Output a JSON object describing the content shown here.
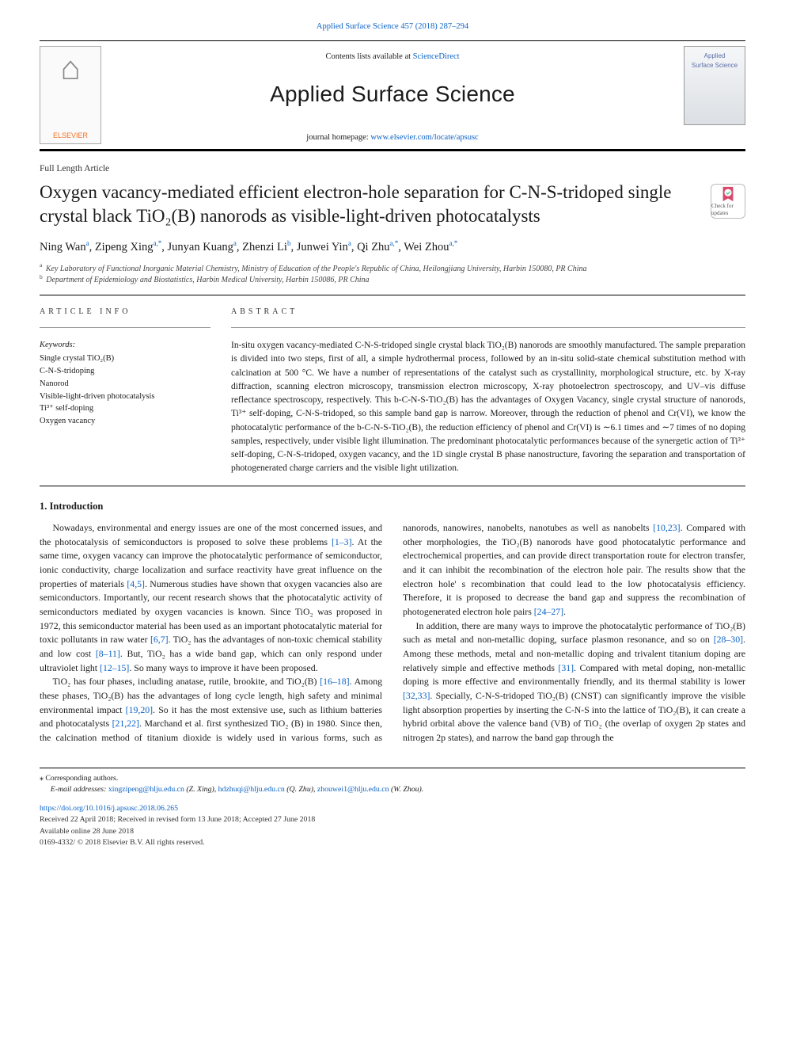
{
  "top_citation": {
    "journal": "Applied Surface Science",
    "vol_pages": "457 (2018) 287–294"
  },
  "header": {
    "contents_prefix": "Contents lists available at ",
    "contents_link": "ScienceDirect",
    "journal": "Applied Surface Science",
    "homepage_prefix": "journal homepage: ",
    "homepage_url": "www.elsevier.com/locate/apsusc",
    "publisher_logo_text": "ELSEVIER",
    "cover_line1": "Applied",
    "cover_line2": "Surface Science"
  },
  "article_type": "Full Length Article",
  "title": "Oxygen vacancy-mediated efficient electron-hole separation for C-N-S-tridoped single crystal black TiO₂(B) nanorods as visible-light-driven photocatalysts",
  "check_badge": "Check for updates",
  "authors_html": "Ning Wan<sup>a</sup>, Zipeng Xing<sup>a,*</sup>, Junyan Kuang<sup>a</sup>, Zhenzi Li<sup>b</sup>, Junwei Yin<sup>a</sup>, Qi Zhu<sup>a,*</sup>, Wei Zhou<sup>a,*</sup>",
  "affiliations": {
    "a": "Key Laboratory of Functional Inorganic Material Chemistry, Ministry of Education of the People's Republic of China, Heilongjiang University, Harbin 150080, PR China",
    "b": "Department of Epidemiology and Biostatistics, Harbin Medical University, Harbin 150086, PR China"
  },
  "labels": {
    "article_info": "ARTICLE INFO",
    "abstract": "ABSTRACT",
    "keywords": "Keywords:"
  },
  "keywords": [
    "Single crystal TiO₂(B)",
    "C-N-S-tridoping",
    "Nanorod",
    "Visible-light-driven photocatalysis",
    "Ti³⁺ self-doping",
    "Oxygen vacancy"
  ],
  "abstract": "In-situ oxygen vacancy-mediated C-N-S-tridoped single crystal black TiO₂(B) nanorods are smoothly manufactured. The sample preparation is divided into two steps, first of all, a simple hydrothermal process, followed by an in-situ solid-state chemical substitution method with calcination at 500 °C. We have a number of representations of the catalyst such as crystallinity, morphological structure, etc. by X-ray diffraction, scanning electron microscopy, transmission electron microscopy, X-ray photoelectron spectroscopy, and UV–vis diffuse reflectance spectroscopy, respectively. This b-C-N-S-TiO₂(B) has the advantages of Oxygen Vacancy, single crystal structure of nanorods, Ti³⁺ self-doping, C-N-S-tridoped, so this sample band gap is narrow. Moreover, through the reduction of phenol and Cr(VI), we know the photocatalytic performance of the b-C-N-S-TiO₂(B), the reduction efficiency of phenol and Cr(VI) is ∼6.1 times and ∼7 times of no doping samples, respectively, under visible light illumination. The predominant photocatalytic performances because of the synergetic action of Ti³⁺ self-doping, C-N-S-tridoped, oxygen vacancy, and the 1D single crystal B phase nanostructure, favoring the separation and transportation of photogenerated charge carriers and the visible light utilization.",
  "section_heading": "1. Introduction",
  "body": {
    "p1a": "Nowadays, environmental and energy issues are one of the most concerned issues, and the photocatalysis of semiconductors is proposed to solve these problems ",
    "p1b": ". At the same time, oxygen vacancy can improve the photocatalytic performance of semiconductor, ionic conductivity, charge localization and surface reactivity have great influence on the properties of materials ",
    "p1c": ". Numerous studies have shown that oxygen vacancies also are semiconductors. Importantly, our recent research shows that the photocatalytic activity of semiconductors mediated by oxygen vacancies is known. Since TiO₂ was proposed in 1972, this semiconductor material has been used as an important photocatalytic material for toxic pollutants in raw water ",
    "p1d": ". TiO₂ has the advantages of non-toxic chemical stability and low cost ",
    "p1e": ". But, TiO₂ has a wide band gap, which can only respond under ultraviolet light ",
    "p1f": ". So many ways to improve it have been proposed.",
    "p2a": "TiO₂ has four phases, including anatase, rutile, brookite, and TiO₂(B) ",
    "p2b": ". Among these phases, TiO₂(B) has the advantages of long cycle length, high safety and minimal environmental impact ",
    "p2c": ". So it has the most extensive use, such as lithium batteries and photocatalysts ",
    "p2d": ". Marchand et al. first synthesized TiO₂ (B) in ",
    "p2e": "1980. Since then, the calcination method of titanium dioxide is widely used in various forms, such as nanorods, nanowires, nanobelts, nanotubes as well as nanobelts ",
    "p2f": ". Compared with other morphologies, the TiO₂(B) nanorods have good photocatalytic performance and electrochemical properties, and can provide direct transportation route for electron transfer, and it can inhibit the recombination of the electron hole pair. The results show that the electron hole' s recombination that could lead to the low photocatalysis efficiency. Therefore, it is proposed to decrease the band gap and suppress the recombination of photogenerated electron hole pairs ",
    "p2g": ".",
    "p3a": "In addition, there are many ways to improve the photocatalytic performance of TiO₂(B) such as metal and non-metallic doping, surface plasmon resonance, and so on ",
    "p3b": ". Among these methods, metal and non-metallic doping and trivalent titanium doping are relatively simple and effective methods ",
    "p3c": ". Compared with metal doping, non-metallic doping is more effective and environmentally friendly, and its thermal stability is lower ",
    "p3d": ". Specially, C-N-S-tridoped TiO₂(B) (CNST) can significantly improve the visible light absorption properties by inserting the C-N-S into the lattice of TiO₂(B), it can create a hybrid orbital above the valence band (VB) of TiO₂ (the overlap of oxygen 2p states and nitrogen 2p states), and narrow the band gap through the"
  },
  "refs": {
    "r1": "[1–3]",
    "r2": "[4,5]",
    "r3": "[6,7]",
    "r4": "[8–11]",
    "r5": "[12–15]",
    "r6": "[16–18]",
    "r7": "[19,20]",
    "r8": "[21,22]",
    "r9": "[10,23]",
    "r10": "[24–27]",
    "r11": "[28–30]",
    "r12": "[31]",
    "r13": "[32,33]"
  },
  "footer": {
    "corr": "⁎ Corresponding authors.",
    "email_label": "E-mail addresses: ",
    "emails": [
      {
        "addr": "xingzipeng@hlju.edu.cn",
        "who": " (Z. Xing), "
      },
      {
        "addr": "hdzhuqi@hlju.edu.cn",
        "who": " (Q. Zhu), "
      },
      {
        "addr": "zhouwei1@hlju.edu.cn",
        "who": " (W. Zhou)."
      }
    ],
    "doi": "https://doi.org/10.1016/j.apsusc.2018.06.265",
    "history": "Received 22 April 2018; Received in revised form 13 June 2018; Accepted 27 June 2018",
    "online": "Available online 28 June 2018",
    "copyright": "0169-4332/ © 2018 Elsevier B.V. All rights reserved."
  },
  "colors": {
    "link": "#0b62c4",
    "orange": "#f36f21",
    "text": "#1a1a1a"
  }
}
